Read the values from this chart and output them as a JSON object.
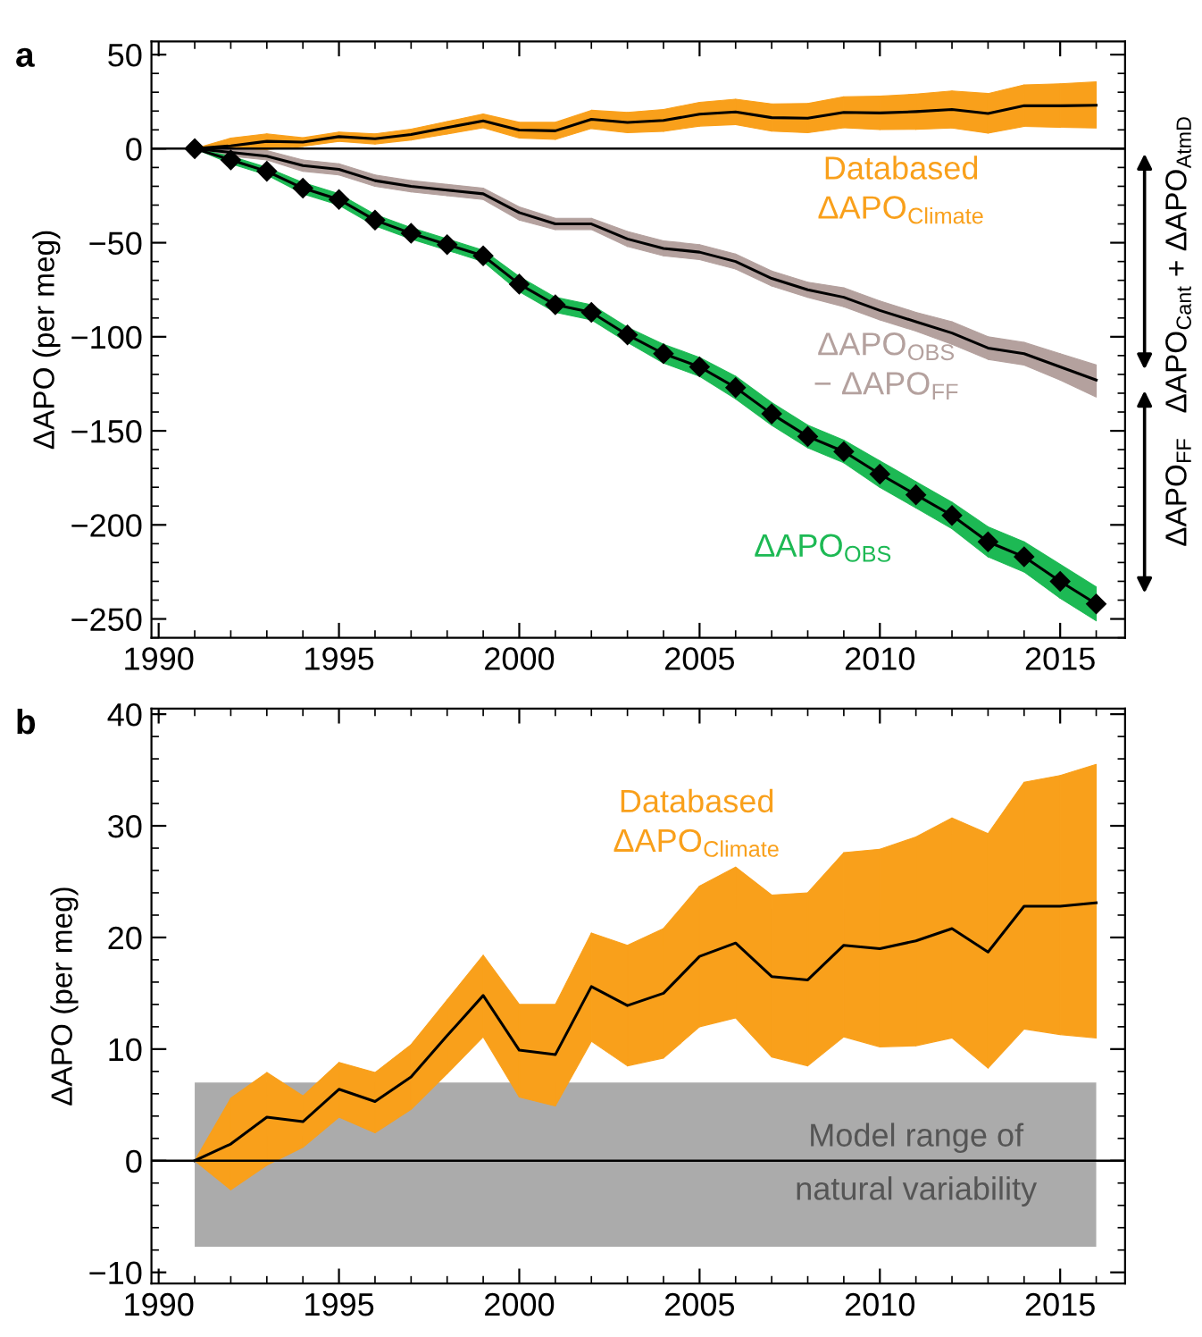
{
  "chart_data": [
    {
      "type": "line",
      "title": "a",
      "ylabel": "ΔAPO (per meg)",
      "x": [
        1991,
        1992,
        1993,
        1994,
        1995,
        1996,
        1997,
        1998,
        1999,
        2000,
        2001,
        2002,
        2003,
        2004,
        2005,
        2006,
        2007,
        2008,
        2009,
        2010,
        2011,
        2012,
        2013,
        2014,
        2015,
        2016
      ],
      "series": [
        {
          "type": "line",
          "name": "Databased\nΔAPO$_{Climate}$",
          "color": "#000000",
          "colors": [
            "#f9a01b",
            "#f9a01b",
            "#f9a01b",
            "#f9a01b",
            "#f9a01b",
            "#f9a01b",
            "#f9a01b",
            "#f9a01b",
            "#f9a01b",
            "#f9a01b",
            "#f9a01b",
            "#f9a01b",
            "#f9a01b",
            "#f9a01b",
            "#f9a01b",
            "#f9a01b",
            "#f9a01b",
            "#f9a01b",
            "#f9a01b",
            "#f9a01b",
            "#f9a01b",
            "#f9a01b",
            "#f9a01b",
            "#f9a01b",
            "#f9a01b",
            "#f9a01b"
          ],
          "marker": "none",
          "values": [
            0,
            1.5,
            3.9,
            3.5,
            6.4,
            5.3,
            7.5,
            11.2,
            14.8,
            9.9,
            9.5,
            15.6,
            13.9,
            15.0,
            18.3,
            19.5,
            16.5,
            16.2,
            19.3,
            19.0,
            19.7,
            20.8,
            18.7,
            22.8,
            22.8,
            23.1
          ],
          "upper": [
            0,
            5.6,
            7.9,
            5.8,
            8.8,
            7.9,
            10.4,
            14.4,
            18.4,
            14.0,
            14.0,
            20.4,
            19.3,
            20.8,
            24.6,
            26.3,
            23.8,
            24.0,
            27.6,
            27.9,
            29.0,
            30.7,
            29.3,
            33.9,
            34.5,
            35.5
          ],
          "lower": [
            0,
            -2.6,
            -0.4,
            1.2,
            3.9,
            2.5,
            4.6,
            7.8,
            11.1,
            5.7,
            4.9,
            10.7,
            8.5,
            9.2,
            12.0,
            12.8,
            9.3,
            8.5,
            11.1,
            10.2,
            10.3,
            11.0,
            8.3,
            11.8,
            11.3,
            11.0
          ]
        },
        {
          "type": "line",
          "name": "ΔAPO$_{OBS}$\n− ΔAPO$_{FF}$",
          "color": "#000000",
          "colors": [
            "#b4a19e",
            "#b4a19e",
            "#b4a19e",
            "#b4a19e",
            "#b4a19e",
            "#b4a19e",
            "#b4a19e",
            "#b4a19e",
            "#b4a19e",
            "#b4a19e",
            "#b4a19e",
            "#b4a19e",
            "#b4a19e",
            "#b4a19e",
            "#b4a19e",
            "#b4a19e",
            "#b4a19e",
            "#b4a19e",
            "#b4a19e",
            "#b4a19e",
            "#b4a19e",
            "#b4a19e",
            "#b4a19e",
            "#b4a19e",
            "#b4a19e",
            "#b4a19e"
          ],
          "marker": "none",
          "values": [
            0,
            -2,
            -4,
            -9,
            -11,
            -17,
            -20,
            -22,
            -24,
            -34,
            -40,
            -40,
            -48,
            -53,
            -55,
            -60,
            -69,
            -75,
            -79,
            -86,
            -92,
            -98,
            -106,
            -109,
            -116,
            -123
          ],
          "upper": [
            0,
            0,
            -1,
            -6,
            -8,
            -14,
            -17,
            -19,
            -21,
            -31,
            -37,
            -37,
            -44,
            -49,
            -51,
            -56,
            -65,
            -71,
            -74,
            -81,
            -87,
            -92,
            -100,
            -103,
            -109,
            -115
          ],
          "lower": [
            0,
            -4,
            -6,
            -12,
            -14,
            -20,
            -23,
            -25,
            -27,
            -38,
            -43,
            -43,
            -52,
            -57,
            -59,
            -64,
            -73,
            -79,
            -84,
            -91,
            -97,
            -104,
            -112,
            -115,
            -123,
            -132
          ]
        },
        {
          "type": "line",
          "name": "ΔAPO$_{OBS}$",
          "color": "#000000",
          "colors": [
            "#1db954",
            "#1db954",
            "#1db954",
            "#1db954",
            "#1db954",
            "#1db954",
            "#1db954",
            "#1db954",
            "#1db954",
            "#1db954",
            "#1db954",
            "#1db954",
            "#1db954",
            "#1db954",
            "#1db954",
            "#1db954",
            "#1db954",
            "#1db954",
            "#1db954",
            "#1db954",
            "#1db954",
            "#1db954",
            "#1db954",
            "#1db954",
            "#1db954",
            "#1db954"
          ],
          "marker": "diamond",
          "values": [
            0,
            -6,
            -12,
            -21,
            -27,
            -38,
            -45,
            -51,
            -57,
            -72,
            -83,
            -87,
            -99,
            -109,
            -116,
            -127,
            -141,
            -153,
            -161,
            -173,
            -184,
            -195,
            -209,
            -217,
            -230,
            -242
          ],
          "upper": [
            0,
            -4,
            -10,
            -18,
            -24,
            -35,
            -42,
            -48,
            -54,
            -68,
            -79,
            -83,
            -95,
            -104,
            -111,
            -121,
            -135,
            -147,
            -155,
            -166,
            -177,
            -188,
            -201,
            -209,
            -221,
            -233
          ],
          "lower": [
            0,
            -8,
            -14,
            -24,
            -30,
            -41,
            -48,
            -54,
            -60,
            -76,
            -87,
            -91,
            -103,
            -114,
            -121,
            -133,
            -147,
            -159,
            -167,
            -180,
            -191,
            -202,
            -217,
            -225,
            -239,
            -251
          ]
        }
      ],
      "xlim": [
        1989.8,
        2016.8
      ],
      "xticks": [
        1990,
        1995,
        2000,
        2005,
        2010,
        2015
      ],
      "ylim": [
        -260,
        57
      ],
      "yticks": [
        -250,
        -200,
        -150,
        -100,
        -50,
        0,
        50
      ],
      "ref_lines": [
        {
          "axis": "y",
          "value": 0,
          "color": "#000000"
        }
      ],
      "annotations": [
        "ΔAPO$_{Cant}$ + ΔAPO$_{AtmD}$",
        "ΔAPO$_{FF}$"
      ],
      "grid": false,
      "legend": "right"
    },
    {
      "type": "line",
      "title": "b",
      "ylabel": "ΔAPO (per meg)",
      "x": [
        1991,
        1992,
        1993,
        1994,
        1995,
        1996,
        1997,
        1998,
        1999,
        2000,
        2001,
        2002,
        2003,
        2004,
        2005,
        2006,
        2007,
        2008,
        2009,
        2010,
        2011,
        2012,
        2013,
        2014,
        2015,
        2016
      ],
      "series": [
        {
          "type": "line",
          "name": "Databased\nΔAPO$_{Climate}$",
          "color": "#000000",
          "colors": [
            "#f9a01b",
            "#f9a01b",
            "#f9a01b",
            "#f9a01b",
            "#f9a01b",
            "#f9a01b",
            "#f9a01b",
            "#f9a01b",
            "#f9a01b",
            "#f9a01b",
            "#f9a01b",
            "#f9a01b",
            "#f9a01b",
            "#f9a01b",
            "#f9a01b",
            "#f9a01b",
            "#f9a01b",
            "#f9a01b",
            "#f9a01b",
            "#f9a01b",
            "#f9a01b",
            "#f9a01b",
            "#f9a01b",
            "#f9a01b",
            "#f9a01b",
            "#f9a01b"
          ],
          "marker": "none",
          "values": [
            0,
            1.5,
            3.9,
            3.5,
            6.4,
            5.3,
            7.5,
            11.2,
            14.8,
            9.9,
            9.5,
            15.6,
            13.9,
            15.0,
            18.3,
            19.5,
            16.5,
            16.2,
            19.3,
            19.0,
            19.7,
            20.8,
            18.7,
            22.8,
            22.8,
            23.1
          ],
          "upper": [
            0,
            5.6,
            7.9,
            5.8,
            8.8,
            7.9,
            10.4,
            14.4,
            18.4,
            14.0,
            14.0,
            20.4,
            19.3,
            20.8,
            24.6,
            26.3,
            23.8,
            24.0,
            27.6,
            27.9,
            29.0,
            30.7,
            29.3,
            33.9,
            34.5,
            35.5
          ],
          "lower": [
            0,
            -2.6,
            -0.4,
            1.2,
            3.9,
            2.5,
            4.6,
            7.8,
            11.1,
            5.7,
            4.9,
            10.7,
            8.5,
            9.2,
            12.0,
            12.8,
            9.3,
            8.5,
            11.1,
            10.2,
            10.3,
            11.0,
            8.3,
            11.8,
            11.3,
            11.0
          ]
        }
      ],
      "xlim": [
        1989.8,
        2016.8
      ],
      "xticks": [
        1990,
        1995,
        2000,
        2005,
        2010,
        2015
      ],
      "ylim": [
        -11,
        40.5
      ],
      "yticks": [
        -10,
        0,
        10,
        20,
        30,
        40
      ],
      "ref_lines": [
        {
          "axis": "y",
          "value": 0,
          "color": "#000000"
        }
      ],
      "bands": [
        {
          "axis": "y",
          "from": -7.7,
          "to": 7,
          "label": "Model range of\nnatural variability",
          "color": "#ababab"
        }
      ],
      "grid": false,
      "legend": "right"
    }
  ]
}
